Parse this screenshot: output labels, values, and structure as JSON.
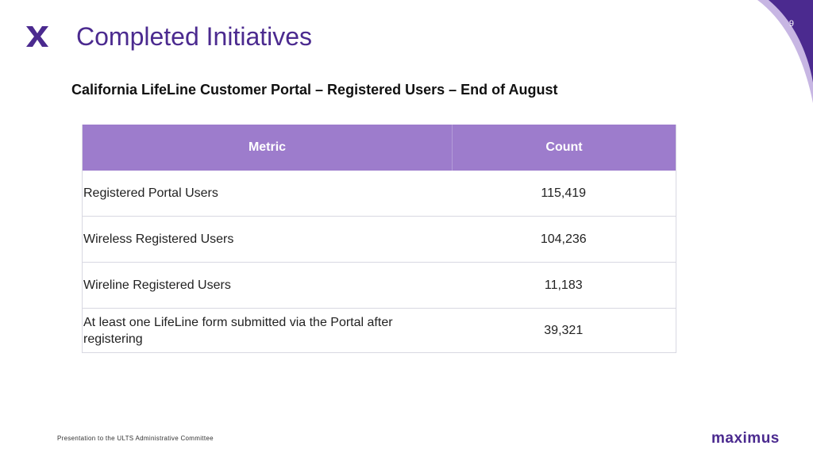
{
  "header": {
    "page_number": "9",
    "title": "Completed Initiatives",
    "subtitle": "California LifeLine Customer Portal – Registered Users – End of August"
  },
  "table": {
    "columns": [
      "Metric",
      "Count"
    ],
    "rows": [
      {
        "metric": "Registered Portal Users",
        "count": "115,419"
      },
      {
        "metric": "Wireless Registered Users",
        "count": "104,236"
      },
      {
        "metric": "Wireline Registered Users",
        "count": "11,183"
      },
      {
        "metric": "At least one LifeLine form submitted via the Portal after registering",
        "count": "39,321"
      }
    ]
  },
  "footer": {
    "text": "Presentation to the ULTS Administrative Committee",
    "brand": "maximus"
  },
  "colors": {
    "brand_purple": "#4b2a8f",
    "header_purple": "#9d7ccc"
  },
  "icons": {
    "logo": "maximus-x-logo-icon",
    "corner": "corner-swoosh-decoration"
  }
}
